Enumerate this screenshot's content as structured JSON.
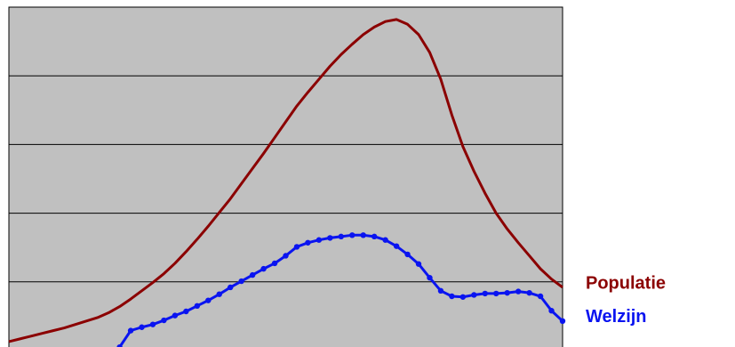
{
  "chart_data": {
    "type": "line",
    "x": [
      0,
      1,
      2,
      3,
      4,
      5,
      6,
      7,
      8,
      9,
      10,
      11,
      12,
      13,
      14,
      15,
      16,
      17,
      18,
      19,
      20,
      21,
      22,
      23,
      24,
      25,
      26,
      27,
      28,
      29,
      30,
      31,
      32,
      33,
      34,
      35,
      36,
      37,
      38,
      39,
      40,
      41,
      42,
      43,
      44,
      45,
      46,
      47,
      48,
      49,
      50
    ],
    "xlim": [
      0,
      50
    ],
    "ylim": [
      0,
      5
    ],
    "yticks": [
      0,
      1,
      2,
      3,
      4,
      5
    ],
    "grid": true,
    "series": [
      {
        "name": "Populatie",
        "color": "#8b0000",
        "markers": false,
        "values": [
          0.13,
          0.17,
          0.21,
          0.25,
          0.29,
          0.33,
          0.38,
          0.43,
          0.48,
          0.55,
          0.64,
          0.75,
          0.87,
          0.99,
          1.12,
          1.27,
          1.44,
          1.62,
          1.81,
          2.01,
          2.21,
          2.43,
          2.65,
          2.87,
          3.1,
          3.33,
          3.56,
          3.76,
          3.95,
          4.14,
          4.31,
          4.46,
          4.6,
          4.71,
          4.79,
          4.82,
          4.75,
          4.6,
          4.34,
          3.95,
          3.43,
          2.97,
          2.61,
          2.29,
          2.0,
          1.77,
          1.57,
          1.38,
          1.19,
          1.04,
          0.92
        ]
      },
      {
        "name": "Welzijn",
        "color": "#0a14f0",
        "markers": true,
        "values": [
          null,
          null,
          null,
          null,
          null,
          null,
          null,
          null,
          null,
          null,
          0.05,
          0.29,
          0.34,
          0.38,
          0.44,
          0.51,
          0.57,
          0.65,
          0.73,
          0.82,
          0.92,
          1.01,
          1.1,
          1.19,
          1.27,
          1.38,
          1.51,
          1.57,
          1.61,
          1.64,
          1.66,
          1.68,
          1.68,
          1.66,
          1.61,
          1.52,
          1.4,
          1.26,
          1.06,
          0.87,
          0.79,
          0.78,
          0.81,
          0.83,
          0.83,
          0.84,
          0.86,
          0.84,
          0.79,
          0.58,
          0.43
        ]
      }
    ]
  }
}
